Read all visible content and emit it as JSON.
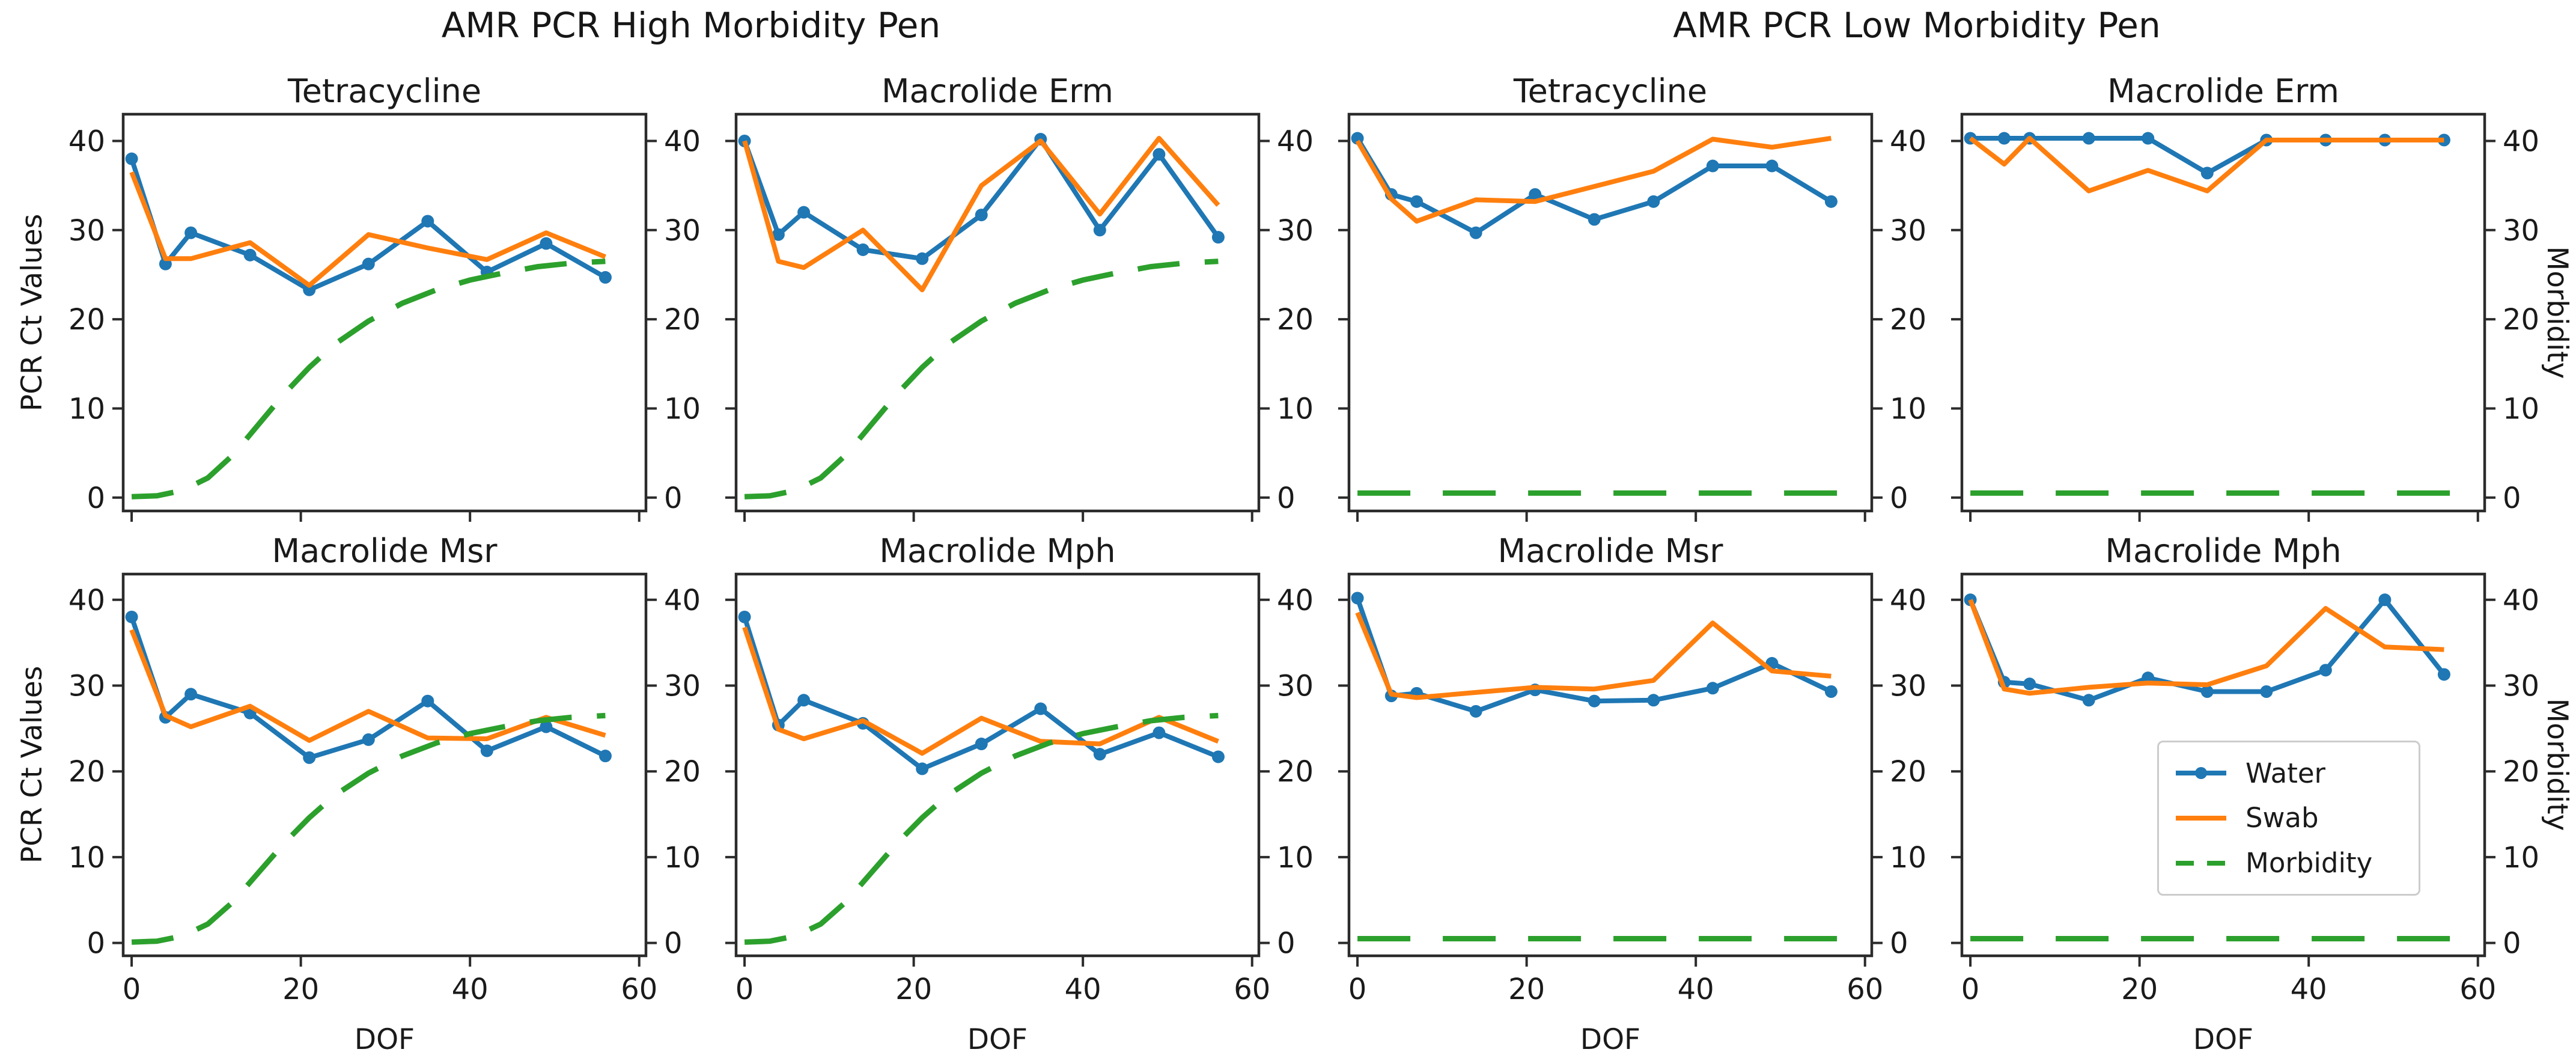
{
  "chart_data": {
    "type": "line",
    "suptitles": [
      "AMR PCR High Morbidity Pen",
      "AMR PCR Low Morbidity Pen"
    ],
    "xlabel": "DOF",
    "ylabel_left": "PCR Ct Values",
    "ylabel_right": "Morbidity",
    "x_ticks": [
      0,
      20,
      40,
      60
    ],
    "y_ticks": [
      0,
      10,
      20,
      30,
      40
    ],
    "xlim": [
      -1,
      60.8
    ],
    "ylim": [
      -1.5,
      43
    ],
    "grid": false,
    "x": [
      0,
      4,
      7,
      14,
      21,
      28,
      35,
      42,
      49,
      56
    ],
    "colors": {
      "water": "#1f77b4",
      "swab": "#ff7f0e",
      "morbidity": "#2ca02c",
      "spine": "#2b2b2b"
    },
    "legend": {
      "position": "inside low-pen Macrolide Mph panel",
      "items": [
        {
          "label": "Water",
          "series": "water",
          "style": "solid line with circle marker"
        },
        {
          "label": "Swab",
          "series": "swab",
          "style": "solid line"
        },
        {
          "label": "Morbidity",
          "series": "morbidity",
          "style": "dashed line"
        }
      ]
    },
    "morbidity_high": {
      "x": [
        0,
        3,
        6,
        9,
        12,
        15,
        18,
        21,
        24,
        28,
        32,
        36,
        40,
        44,
        48,
        52,
        56
      ],
      "y": [
        0.1,
        0.2,
        0.8,
        2.2,
        4.8,
        8.2,
        11.6,
        14.6,
        17.2,
        19.8,
        21.8,
        23.3,
        24.4,
        25.2,
        25.9,
        26.3,
        26.5
      ]
    },
    "morbidity_low_value": 0.5,
    "panels": [
      {
        "grid_row": 0,
        "grid_col": 0,
        "group": "high",
        "title": "Tetracycline",
        "water": [
          38,
          26.2,
          29.7,
          27.2,
          23.3,
          26.2,
          31,
          25.3,
          28.5,
          24.7
        ],
        "swab": [
          36.5,
          26.8,
          26.8,
          28.6,
          23.8,
          29.5,
          28,
          26.7,
          29.7,
          27
        ]
      },
      {
        "grid_row": 0,
        "grid_col": 1,
        "group": "high",
        "title": "Macrolide Erm",
        "water": [
          40,
          29.5,
          32,
          27.8,
          26.8,
          31.7,
          40.2,
          30,
          38.5,
          29.2
        ],
        "swab": [
          40,
          26.5,
          25.8,
          30,
          23.3,
          35,
          40,
          31.8,
          40.3,
          32.8
        ]
      },
      {
        "grid_row": 0,
        "grid_col": 2,
        "group": "low",
        "title": "Tetracycline",
        "water": [
          40.3,
          34,
          33.2,
          29.7,
          34,
          31.2,
          33.2,
          37.2,
          37.2,
          33.2
        ],
        "swab": [
          40,
          33.5,
          31,
          33.4,
          33.2,
          34.9,
          36.6,
          40.2,
          39.3,
          40.3
        ]
      },
      {
        "grid_row": 0,
        "grid_col": 3,
        "group": "low",
        "title": "Macrolide Erm",
        "water": [
          40.3,
          40.3,
          40.3,
          40.3,
          40.3,
          36.4,
          40.1,
          40.1,
          40.1,
          40.1
        ],
        "swab": [
          40.3,
          37.4,
          40.3,
          34.4,
          36.7,
          34.4,
          40.1,
          40.1,
          40.1,
          40.1
        ]
      },
      {
        "grid_row": 1,
        "grid_col": 0,
        "group": "high",
        "title": "Macrolide Msr",
        "water": [
          38,
          26.3,
          29,
          26.8,
          21.6,
          23.7,
          28.2,
          22.4,
          25.2,
          21.8
        ],
        "swab": [
          36.5,
          26.5,
          25.2,
          27.6,
          23.6,
          27,
          23.9,
          23.8,
          26.3,
          24.2
        ]
      },
      {
        "grid_row": 1,
        "grid_col": 1,
        "group": "high",
        "title": "Macrolide Mph",
        "water": [
          38,
          25.4,
          28.3,
          25.6,
          20.3,
          23.2,
          27.3,
          22,
          24.5,
          21.7
        ],
        "swab": [
          36.8,
          24.9,
          23.8,
          25.9,
          22.1,
          26.2,
          23.5,
          23.2,
          26.3,
          23.5
        ]
      },
      {
        "grid_row": 1,
        "grid_col": 2,
        "group": "low",
        "title": "Macrolide Msr",
        "water": [
          40.2,
          28.8,
          29.1,
          27,
          29.5,
          28.2,
          28.3,
          29.7,
          32.6,
          29.3
        ],
        "swab": [
          38.5,
          29,
          28.6,
          29.2,
          29.8,
          29.6,
          30.6,
          37.3,
          31.7,
          31.1
        ]
      },
      {
        "grid_row": 1,
        "grid_col": 3,
        "group": "low",
        "title": "Macrolide Mph",
        "water": [
          40,
          30.4,
          30.2,
          28.3,
          30.9,
          29.3,
          29.3,
          31.8,
          40,
          31.3
        ],
        "swab": [
          40,
          29.6,
          29.1,
          29.8,
          30.3,
          30.1,
          32.3,
          39,
          34.5,
          34.2
        ]
      }
    ]
  }
}
